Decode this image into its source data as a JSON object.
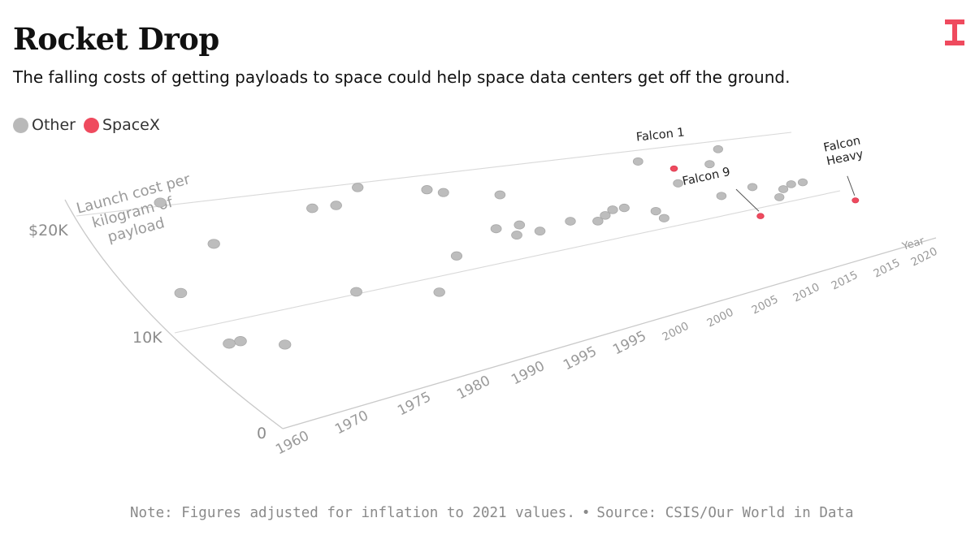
{
  "header": {
    "title": "Rocket Drop",
    "subtitle": "The falling costs of getting payloads to space could help space data centers get off the ground."
  },
  "legend": {
    "items": [
      {
        "label": "Other",
        "color": "#b9b9b9"
      },
      {
        "label": "SpaceX",
        "color": "#ef4a5e"
      }
    ]
  },
  "footer": {
    "note": "Note: Figures adjusted for inflation to 2021 values.",
    "separator": "•",
    "source": "Source: CSIS/Our World in Data"
  },
  "brand": {
    "logo_icon": "t-letter-logo-icon",
    "accent": "#ef4a5e"
  },
  "chart_data": {
    "type": "scatter",
    "title": "Rocket Drop",
    "xlabel": "Year",
    "ylabel": "Launch cost per kilogram of payload",
    "ylabel_lines": [
      "Launch cost per",
      "kilogram of",
      "payload"
    ],
    "y_tick_labels": [
      "$20K",
      "10K",
      "0"
    ],
    "x_tick_labels": [
      "1960",
      "1970",
      "1975",
      "1980",
      "1990",
      "1995",
      "1995",
      "2000",
      "2000",
      "2005",
      "2010",
      "2015",
      "2015",
      "2020"
    ],
    "ylim": [
      0,
      20000
    ],
    "series": [
      {
        "name": "Other",
        "color": "#bdbdbd",
        "points": [
          {
            "x": 1963,
            "y": 7000
          },
          {
            "x": 1962,
            "y": 7000
          },
          {
            "x": 1966,
            "y": 6000
          },
          {
            "x": 1962,
            "y": 11500
          },
          {
            "x": 1968,
            "y": 15000
          },
          {
            "x": 1967,
            "y": 19000
          },
          {
            "x": 1975,
            "y": 9000
          },
          {
            "x": 1978,
            "y": 17000
          },
          {
            "x": 1980,
            "y": 17000
          },
          {
            "x": 1981,
            "y": 7500
          },
          {
            "x": 1983,
            "y": 18500
          },
          {
            "x": 1985,
            "y": 10500
          },
          {
            "x": 1988,
            "y": 17500
          },
          {
            "x": 1988,
            "y": 17500
          },
          {
            "x": 1989,
            "y": 17000
          },
          {
            "x": 1990,
            "y": 12500
          },
          {
            "x": 1991,
            "y": 11500
          },
          {
            "x": 1992,
            "y": 12500
          },
          {
            "x": 1993,
            "y": 11500
          },
          {
            "x": 1993,
            "y": 16000
          },
          {
            "x": 1996,
            "y": 12000
          },
          {
            "x": 1998,
            "y": 11500
          },
          {
            "x": 1998,
            "y": 11500
          },
          {
            "x": 1999,
            "y": 12000
          },
          {
            "x": 2000,
            "y": 12500
          },
          {
            "x": 2000,
            "y": 12500
          },
          {
            "x": 2001,
            "y": 12500
          },
          {
            "x": 2003,
            "y": 10500
          },
          {
            "x": 2003,
            "y": 11500
          },
          {
            "x": 2006,
            "y": 18000
          },
          {
            "x": 2007,
            "y": 14500
          },
          {
            "x": 2009,
            "y": 12000
          },
          {
            "x": 2011,
            "y": 16500
          },
          {
            "x": 2012,
            "y": 12500
          },
          {
            "x": 2013,
            "y": 10500
          },
          {
            "x": 2014,
            "y": 11500
          },
          {
            "x": 2015,
            "y": 12000
          },
          {
            "x": 2016,
            "y": 12000
          },
          {
            "x": 2013,
            "y": 18500
          }
        ]
      },
      {
        "name": "SpaceX",
        "color": "#ef4a5e",
        "points": [
          {
            "x": 2008,
            "y": 16500,
            "label": "Falcon 1"
          },
          {
            "x": 2010,
            "y": 8500,
            "label": "Falcon 9"
          },
          {
            "x": 2018,
            "y": 8000,
            "label": "Falcon Heavy",
            "label_lines": [
              "Falcon",
              "Heavy"
            ]
          }
        ]
      }
    ]
  }
}
